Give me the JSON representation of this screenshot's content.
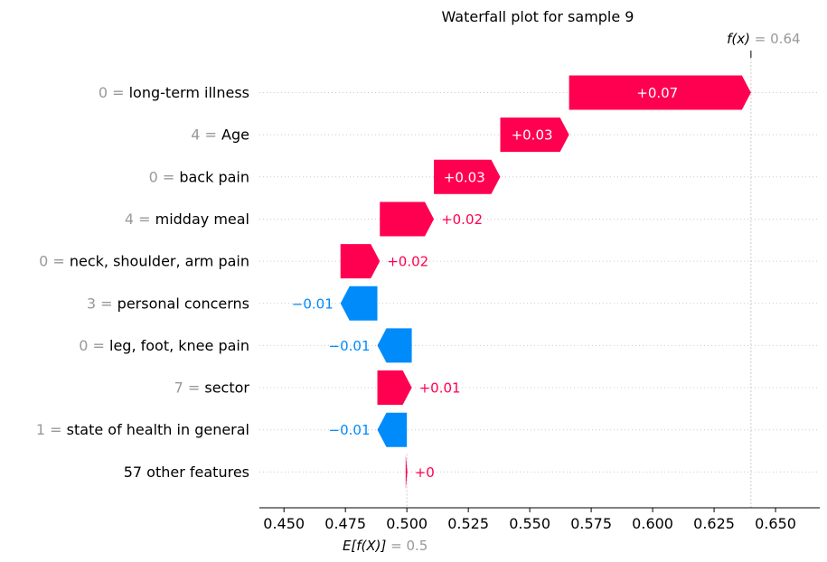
{
  "chart_data": {
    "type": "waterfall",
    "title": "Waterfall plot for sample 9",
    "base_value": 0.5,
    "base_label_expr": "E[f(X)]",
    "base_label_value": "0.5",
    "output_value": 0.64,
    "output_label_expr": "f(x)",
    "output_label_value": "0.64",
    "xlim": [
      0.44,
      0.668
    ],
    "xticks": [
      0.45,
      0.475,
      0.5,
      0.525,
      0.55,
      0.575,
      0.6,
      0.625,
      0.65
    ],
    "xtick_labels": [
      "0.450",
      "0.475",
      "0.500",
      "0.525",
      "0.550",
      "0.575",
      "0.600",
      "0.625",
      "0.650"
    ],
    "colors": {
      "positive": "#ff0051",
      "negative": "#008bfb",
      "grid": "#cccccc",
      "muted": "#999999"
    },
    "features": [
      {
        "value": "0",
        "name": "long-term illness",
        "start": 0.566,
        "end": 0.64,
        "label": "+0.07"
      },
      {
        "value": "4",
        "name": "Age",
        "start": 0.538,
        "end": 0.566,
        "label": "+0.03"
      },
      {
        "value": "0",
        "name": "back pain",
        "start": 0.511,
        "end": 0.538,
        "label": "+0.03"
      },
      {
        "value": "4",
        "name": "midday meal",
        "start": 0.489,
        "end": 0.511,
        "label": "+0.02"
      },
      {
        "value": "0",
        "name": "neck, shoulder, arm pain",
        "start": 0.473,
        "end": 0.489,
        "label": "+0.02"
      },
      {
        "value": "3",
        "name": "personal concerns",
        "start": 0.488,
        "end": 0.473,
        "label": "−0.01"
      },
      {
        "value": "0",
        "name": "leg, foot, knee pain",
        "start": 0.502,
        "end": 0.488,
        "label": "−0.01"
      },
      {
        "value": "7",
        "name": "sector",
        "start": 0.488,
        "end": 0.502,
        "label": "+0.01"
      },
      {
        "value": "1",
        "name": "state of health in general",
        "start": 0.5,
        "end": 0.488,
        "label": "−0.01"
      },
      {
        "value": "",
        "name": "57 other features",
        "start": 0.4995,
        "end": 0.5002,
        "label": "+0"
      }
    ]
  }
}
